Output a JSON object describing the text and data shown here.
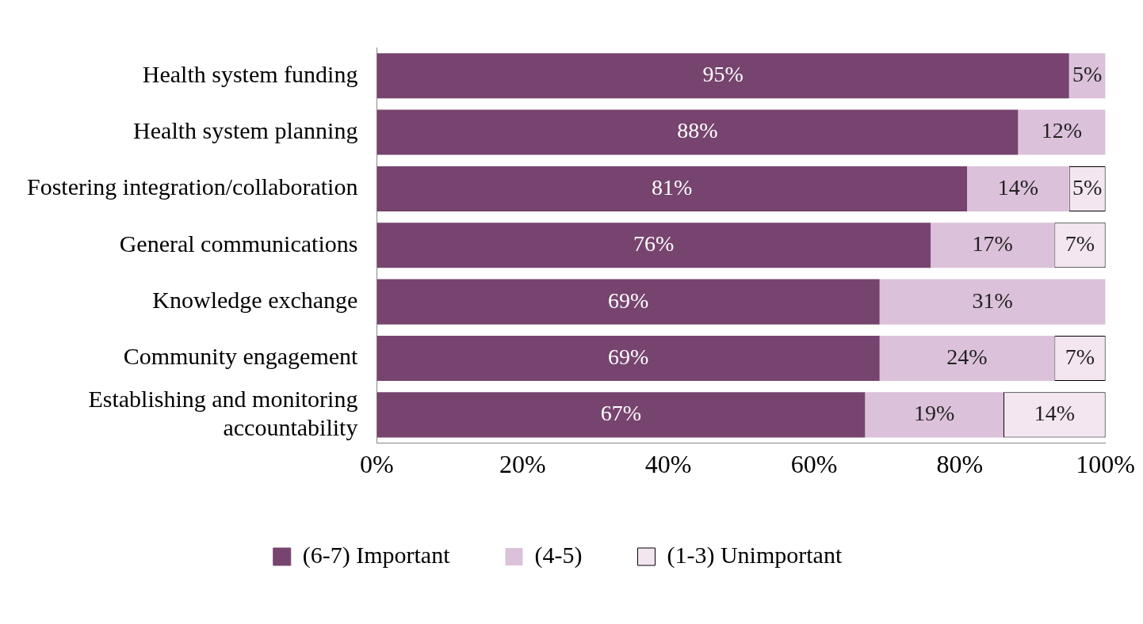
{
  "chart_data": {
    "type": "bar",
    "orientation": "horizontal",
    "stacked": true,
    "categories": [
      "Health system funding",
      "Health system planning",
      "Fostering integration/collaboration",
      "General communications",
      "Knowledge exchange",
      "Community engagement",
      "Establishing and monitoring accountability"
    ],
    "series": [
      {
        "name": "(6-7) Important",
        "color": "#77446f",
        "values": [
          95,
          88,
          81,
          76,
          69,
          69,
          67
        ],
        "value_labels": [
          "95%",
          "88%",
          "81%",
          "76%",
          "69%",
          "69%",
          "67%"
        ]
      },
      {
        "name": "(4-5)",
        "color": "#dcc1da",
        "values": [
          5,
          12,
          14,
          17,
          31,
          24,
          19
        ],
        "value_labels": [
          "5%",
          "12%",
          "14%",
          "17%",
          "31%",
          "24%",
          "19%"
        ]
      },
      {
        "name": "(1-3) Unimportant",
        "color": "#f3e6f1",
        "values": [
          null,
          null,
          5,
          7,
          null,
          7,
          14
        ],
        "value_labels": [
          null,
          null,
          "5%",
          "7%",
          null,
          "7%",
          "14%"
        ]
      }
    ],
    "xlim": [
      0,
      100
    ],
    "xticks": [
      {
        "value": 0,
        "label": "0%"
      },
      {
        "value": 20,
        "label": "20%"
      },
      {
        "value": 40,
        "label": "40%"
      },
      {
        "value": 60,
        "label": "60%"
      },
      {
        "value": 80,
        "label": "80%"
      },
      {
        "value": 100,
        "label": "100%"
      }
    ],
    "grid": false,
    "legend": "bottom"
  }
}
